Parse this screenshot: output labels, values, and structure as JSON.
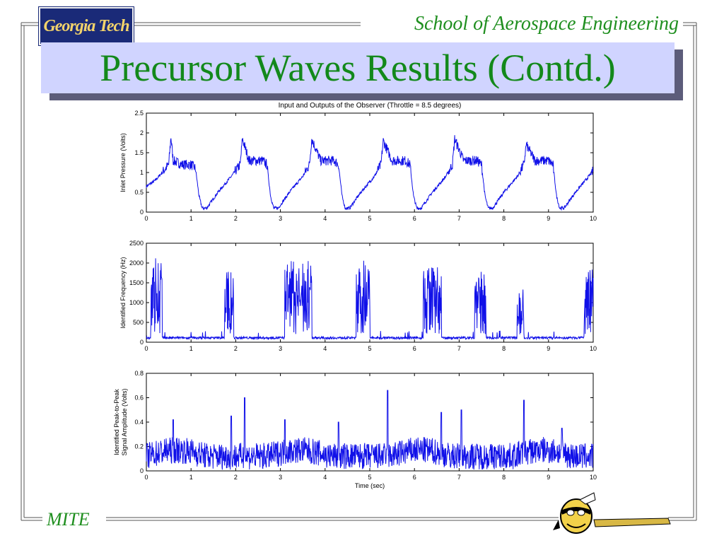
{
  "header": {
    "logo_text": "Georgia Tech",
    "school": "School of Aerospace Engineering"
  },
  "slide": {
    "title": "Precursor Waves Results (Contd.)"
  },
  "footer": {
    "label": "MITE"
  },
  "colors": {
    "green": "#1f8f1f",
    "title_bg": "#d0d4ff",
    "logo_bg": "#1a2a78",
    "logo_text": "#f3d36b",
    "line": "#1010e8"
  },
  "icons": {
    "mascot": "yellow-jacket-mascot-icon"
  },
  "chart_data": [
    {
      "type": "line",
      "title": "Input and Outputs of the Observer (Throttle = 8.5 degrees)",
      "xlabel": "",
      "ylabel": "Inlet Pressure (Volts)",
      "xlim": [
        0,
        10
      ],
      "ylim": [
        0,
        2.5
      ],
      "xticks": [
        "0",
        "1",
        "2",
        "3",
        "4",
        "5",
        "6",
        "7",
        "8",
        "9",
        "10"
      ],
      "yticks": [
        "0",
        "0.5",
        "1",
        "1.5",
        "2",
        "2.5"
      ],
      "grid": false,
      "series": [
        {
          "values_x": [
            0,
            0.2,
            0.35,
            0.5,
            0.55,
            0.6,
            0.8,
            1.0,
            1.1,
            1.18,
            1.25,
            1.35,
            1.6,
            1.9,
            2.1,
            2.15,
            2.3,
            2.6,
            2.7,
            2.78,
            2.85,
            2.95,
            3.2,
            3.5,
            3.65,
            3.7,
            3.9,
            4.2,
            4.3,
            4.38,
            4.45,
            4.55,
            4.8,
            5.1,
            5.25,
            5.3,
            5.5,
            5.8,
            5.9,
            5.98,
            6.05,
            6.15,
            6.4,
            6.7,
            6.85,
            6.9,
            7.1,
            7.4,
            7.5,
            7.58,
            7.65,
            7.75,
            8.0,
            8.3,
            8.45,
            8.5,
            8.7,
            9.0,
            9.1,
            9.18,
            9.25,
            9.35,
            9.6,
            9.9,
            10
          ],
          "values_y": [
            0.65,
            0.8,
            1.0,
            1.2,
            1.9,
            1.3,
            1.2,
            1.2,
            1.1,
            0.4,
            0.1,
            0.1,
            0.5,
            0.9,
            1.2,
            1.85,
            1.3,
            1.3,
            1.2,
            0.4,
            0.1,
            0.1,
            0.5,
            0.9,
            1.2,
            1.85,
            1.3,
            1.3,
            1.2,
            0.4,
            0.1,
            0.1,
            0.5,
            0.9,
            1.2,
            1.8,
            1.3,
            1.3,
            1.2,
            0.4,
            0.1,
            0.1,
            0.5,
            0.9,
            1.2,
            1.85,
            1.3,
            1.3,
            1.2,
            0.4,
            0.1,
            0.1,
            0.5,
            0.9,
            1.2,
            1.7,
            1.3,
            1.3,
            1.2,
            0.4,
            0.1,
            0.1,
            0.5,
            0.9,
            1.05
          ]
        }
      ]
    },
    {
      "type": "line",
      "ylabel": "Identified Frequency (Hz)",
      "xlim": [
        0,
        10
      ],
      "ylim": [
        0,
        2500
      ],
      "xticks": [
        "0",
        "1",
        "2",
        "3",
        "4",
        "5",
        "6",
        "7",
        "8",
        "9",
        "10"
      ],
      "yticks": [
        "0",
        "500",
        "1000",
        "1500",
        "2000",
        "2500"
      ],
      "grid": false,
      "bursts": [
        [
          0.1,
          0.35,
          2200
        ],
        [
          1.75,
          1.95,
          1800
        ],
        [
          3.1,
          3.7,
          2050
        ],
        [
          4.7,
          5.0,
          2100
        ],
        [
          6.2,
          6.6,
          1900
        ],
        [
          7.35,
          7.6,
          1800
        ],
        [
          8.3,
          8.45,
          1400
        ],
        [
          9.8,
          10,
          1950
        ]
      ],
      "baseline": 80
    },
    {
      "type": "line",
      "xlabel": "Time (sec)",
      "ylabel": "Identified Peak-to-Peak Signal Amplitude (Volts)",
      "xlim": [
        0,
        10
      ],
      "ylim": [
        0,
        0.8
      ],
      "xticks": [
        "0",
        "1",
        "2",
        "3",
        "4",
        "5",
        "6",
        "7",
        "8",
        "9",
        "10"
      ],
      "yticks": [
        "0",
        "0.2",
        "0.4",
        "0.6",
        "0.8"
      ],
      "grid": false,
      "peaks": [
        [
          0.6,
          0.42
        ],
        [
          1.9,
          0.45
        ],
        [
          2.2,
          0.6
        ],
        [
          3.1,
          0.42
        ],
        [
          4.3,
          0.4
        ],
        [
          5.4,
          0.66
        ],
        [
          6.6,
          0.48
        ],
        [
          7.05,
          0.5
        ],
        [
          8.45,
          0.58
        ],
        [
          9.3,
          0.35
        ]
      ],
      "baseline": 0.12
    }
  ]
}
